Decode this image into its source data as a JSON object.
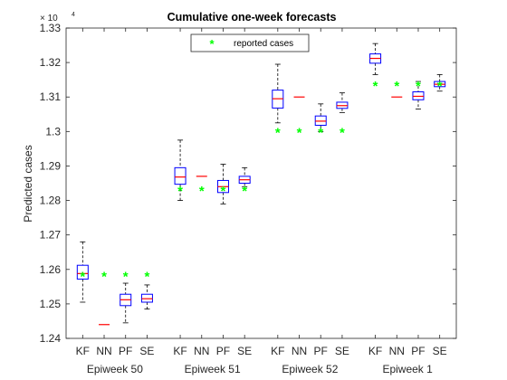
{
  "chart_data": {
    "type": "boxplot",
    "title": "Cumulative one-week forecasts",
    "ylabel": "Predicted cases",
    "xlabel": "",
    "exponent_label": "× 10",
    "exponent_power": "4",
    "ylim": [
      1.24,
      1.33
    ],
    "yticks": [
      "1.24",
      "1.25",
      "1.26",
      "1.27",
      "1.28",
      "1.29",
      "1.3",
      "1.31",
      "1.32",
      "1.33"
    ],
    "methods": [
      "KF",
      "NN",
      "PF",
      "SE"
    ],
    "legend": {
      "label": "reported cases",
      "placement": "top-center"
    },
    "colors": {
      "box": "#0000ff",
      "median": "#ff0000",
      "whisker": "#000000",
      "reported": "#00ff00",
      "axis": "#262626"
    },
    "groups": [
      {
        "label": "Epiweek 50",
        "reported": 1.2582,
        "boxes": [
          {
            "method": "KF",
            "whislo": 1.2505,
            "q1": 1.2572,
            "med": 1.2588,
            "q3": 1.2612,
            "whishi": 1.268,
            "outliers": []
          },
          {
            "method": "NN",
            "whislo": 1.244,
            "q1": 1.244,
            "med": 1.244,
            "q3": 1.244,
            "whishi": 1.244,
            "outliers": []
          },
          {
            "method": "PF",
            "whislo": 1.2445,
            "q1": 1.2495,
            "med": 1.2512,
            "q3": 1.2528,
            "whishi": 1.256,
            "outliers": []
          },
          {
            "method": "SE",
            "whislo": 1.2485,
            "q1": 1.2505,
            "med": 1.2515,
            "q3": 1.2528,
            "whishi": 1.2555,
            "outliers": []
          }
        ]
      },
      {
        "label": "Epiweek 51",
        "reported": 1.283,
        "boxes": [
          {
            "method": "KF",
            "whislo": 1.28,
            "q1": 1.2847,
            "med": 1.2868,
            "q3": 1.2895,
            "whishi": 1.2975,
            "outliers": []
          },
          {
            "method": "NN",
            "whislo": 1.287,
            "q1": 1.287,
            "med": 1.287,
            "q3": 1.287,
            "whishi": 1.287,
            "outliers": []
          },
          {
            "method": "PF",
            "whislo": 1.279,
            "q1": 1.2823,
            "med": 1.284,
            "q3": 1.2858,
            "whishi": 1.2905,
            "outliers": []
          },
          {
            "method": "SE",
            "whislo": 1.284,
            "q1": 1.285,
            "med": 1.286,
            "q3": 1.287,
            "whishi": 1.2895,
            "outliers": []
          }
        ]
      },
      {
        "label": "Epiweek 52",
        "reported": 1.3,
        "boxes": [
          {
            "method": "KF",
            "whislo": 1.3025,
            "q1": 1.3068,
            "med": 1.3095,
            "q3": 1.312,
            "whishi": 1.3195,
            "outliers": []
          },
          {
            "method": "NN",
            "whislo": 1.31,
            "q1": 1.31,
            "med": 1.31,
            "q3": 1.31,
            "whishi": 1.31,
            "outliers": []
          },
          {
            "method": "PF",
            "whislo": 1.3,
            "q1": 1.3018,
            "med": 1.303,
            "q3": 1.3045,
            "whishi": 1.308,
            "outliers": []
          },
          {
            "method": "SE",
            "whislo": 1.3055,
            "q1": 1.3067,
            "med": 1.3075,
            "q3": 1.3085,
            "whishi": 1.3112,
            "outliers": []
          }
        ]
      },
      {
        "label": "Epiweek 1",
        "reported": 1.3135,
        "boxes": [
          {
            "method": "KF",
            "whislo": 1.3165,
            "q1": 1.3198,
            "med": 1.3212,
            "q3": 1.3225,
            "whishi": 1.3255,
            "outliers": []
          },
          {
            "method": "NN",
            "whislo": 1.31,
            "q1": 1.31,
            "med": 1.31,
            "q3": 1.31,
            "whishi": 1.31,
            "outliers": []
          },
          {
            "method": "PF",
            "whislo": 1.3065,
            "q1": 1.3092,
            "med": 1.3102,
            "q3": 1.3115,
            "whishi": 1.3145,
            "outliers": []
          },
          {
            "method": "SE",
            "whislo": 1.3117,
            "q1": 1.313,
            "med": 1.3137,
            "q3": 1.3145,
            "whishi": 1.3165,
            "outliers": []
          }
        ]
      }
    ]
  }
}
